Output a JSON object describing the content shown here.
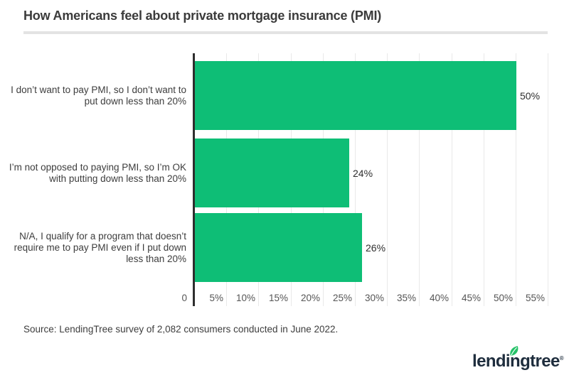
{
  "header": {
    "title": "How Americans feel about private mortgage insurance (PMI)"
  },
  "chart_data": {
    "type": "bar",
    "orientation": "horizontal",
    "title": "How Americans feel about private mortgage insurance (PMI)",
    "categories": [
      "I don’t want to pay PMI, so I don’t want to put down less than 20%",
      "I’m not opposed to paying PMI, so I’m OK with putting down less than 20%",
      "N/A, I qualify for a program that doesn’t require me to pay PMI even if I put down less than 20%"
    ],
    "category_lines": [
      [
        "I don’t want to pay PMI, so I don’t want to",
        "put down less than 20%"
      ],
      [
        "I’m not opposed to paying PMI, so I’m OK",
        "with putting down less than 20%"
      ],
      [
        "N/A, I qualify for a program that doesn’t",
        "require me to pay PMI even if I put down",
        "less than 20%"
      ]
    ],
    "values": [
      50,
      24,
      26
    ],
    "value_labels": [
      "50%",
      "24%",
      "26%"
    ],
    "xlim": [
      0,
      55
    ],
    "xticks": [
      0,
      5,
      10,
      15,
      20,
      25,
      30,
      35,
      40,
      45,
      50,
      55
    ],
    "xtick_labels": [
      "0",
      "5%",
      "10%",
      "15%",
      "20%",
      "25%",
      "30%",
      "35%",
      "40%",
      "45%",
      "50%",
      "55%"
    ],
    "bar_color": "#0ebe76",
    "grid": true,
    "legend_position": "none"
  },
  "footer": {
    "source": "Source: LendingTree survey of 2,082 consumers conducted in June 2022.",
    "logo_text": "lendingtree",
    "logo_reg": "®",
    "logo_color": "#1e2d3d",
    "leaf_color": "#25c268"
  }
}
